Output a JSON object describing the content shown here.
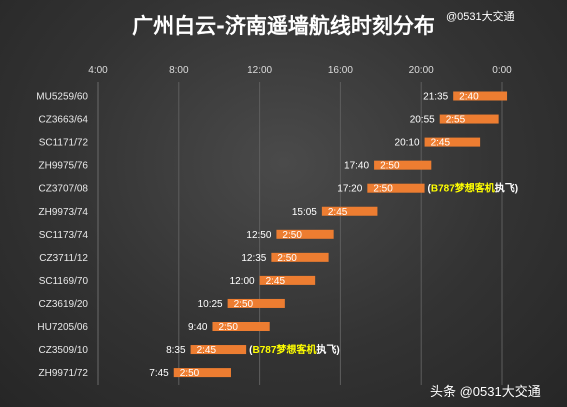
{
  "title": "广州白云-济南遥墙航线时刻分布",
  "handle": "@0531大交通",
  "watermark": "头条 @0531大交通",
  "chart_data": {
    "type": "bar",
    "orientation": "horizontal",
    "xaxis_ticks": [
      "4:00",
      "8:00",
      "12:00",
      "16:00",
      "20:00",
      "0:00"
    ],
    "xaxis_tick_hours": [
      4,
      8,
      12,
      16,
      20,
      24
    ],
    "xlim_hours": [
      4,
      25.5
    ],
    "grid": true,
    "bar_color": "#ed7d31",
    "flights": [
      {
        "flight": "MU5259/60",
        "dep": "21:35",
        "duration": "2:40",
        "start_h": 21.583,
        "dur_h": 2.667
      },
      {
        "flight": "CZ3663/64",
        "dep": "20:55",
        "duration": "2:55",
        "start_h": 20.917,
        "dur_h": 2.917
      },
      {
        "flight": "SC1171/72",
        "dep": "20:10",
        "duration": "2:45",
        "start_h": 20.167,
        "dur_h": 2.75
      },
      {
        "flight": "ZH9975/76",
        "dep": "17:40",
        "duration": "2:50",
        "start_h": 17.667,
        "dur_h": 2.833
      },
      {
        "flight": "CZ3707/08",
        "dep": "17:20",
        "duration": "2:50",
        "start_h": 17.333,
        "dur_h": 2.833,
        "note": {
          "open": "(",
          "aircraft": "B787梦想客机",
          "rest": "执飞)"
        }
      },
      {
        "flight": "ZH9973/74",
        "dep": "15:05",
        "duration": "2:45",
        "start_h": 15.083,
        "dur_h": 2.75
      },
      {
        "flight": "SC1173/74",
        "dep": "12:50",
        "duration": "2:50",
        "start_h": 12.833,
        "dur_h": 2.833
      },
      {
        "flight": "CZ3711/12",
        "dep": "12:35",
        "duration": "2:50",
        "start_h": 12.583,
        "dur_h": 2.833
      },
      {
        "flight": "SC1169/70",
        "dep": "12:00",
        "duration": "2:45",
        "start_h": 12.0,
        "dur_h": 2.75
      },
      {
        "flight": "CZ3619/20",
        "dep": "10:25",
        "duration": "2:50",
        "start_h": 10.417,
        "dur_h": 2.833
      },
      {
        "flight": "HU7205/06",
        "dep": "9:40",
        "duration": "2:50",
        "start_h": 9.667,
        "dur_h": 2.833
      },
      {
        "flight": "CZ3509/10",
        "dep": "8:35",
        "duration": "2:45",
        "start_h": 8.583,
        "dur_h": 2.75,
        "note": {
          "open": "(",
          "aircraft": "B787梦想客机",
          "rest": "执飞)"
        }
      },
      {
        "flight": "ZH9971/72",
        "dep": "7:45",
        "duration": "2:50",
        "start_h": 7.75,
        "dur_h": 2.833
      }
    ]
  }
}
